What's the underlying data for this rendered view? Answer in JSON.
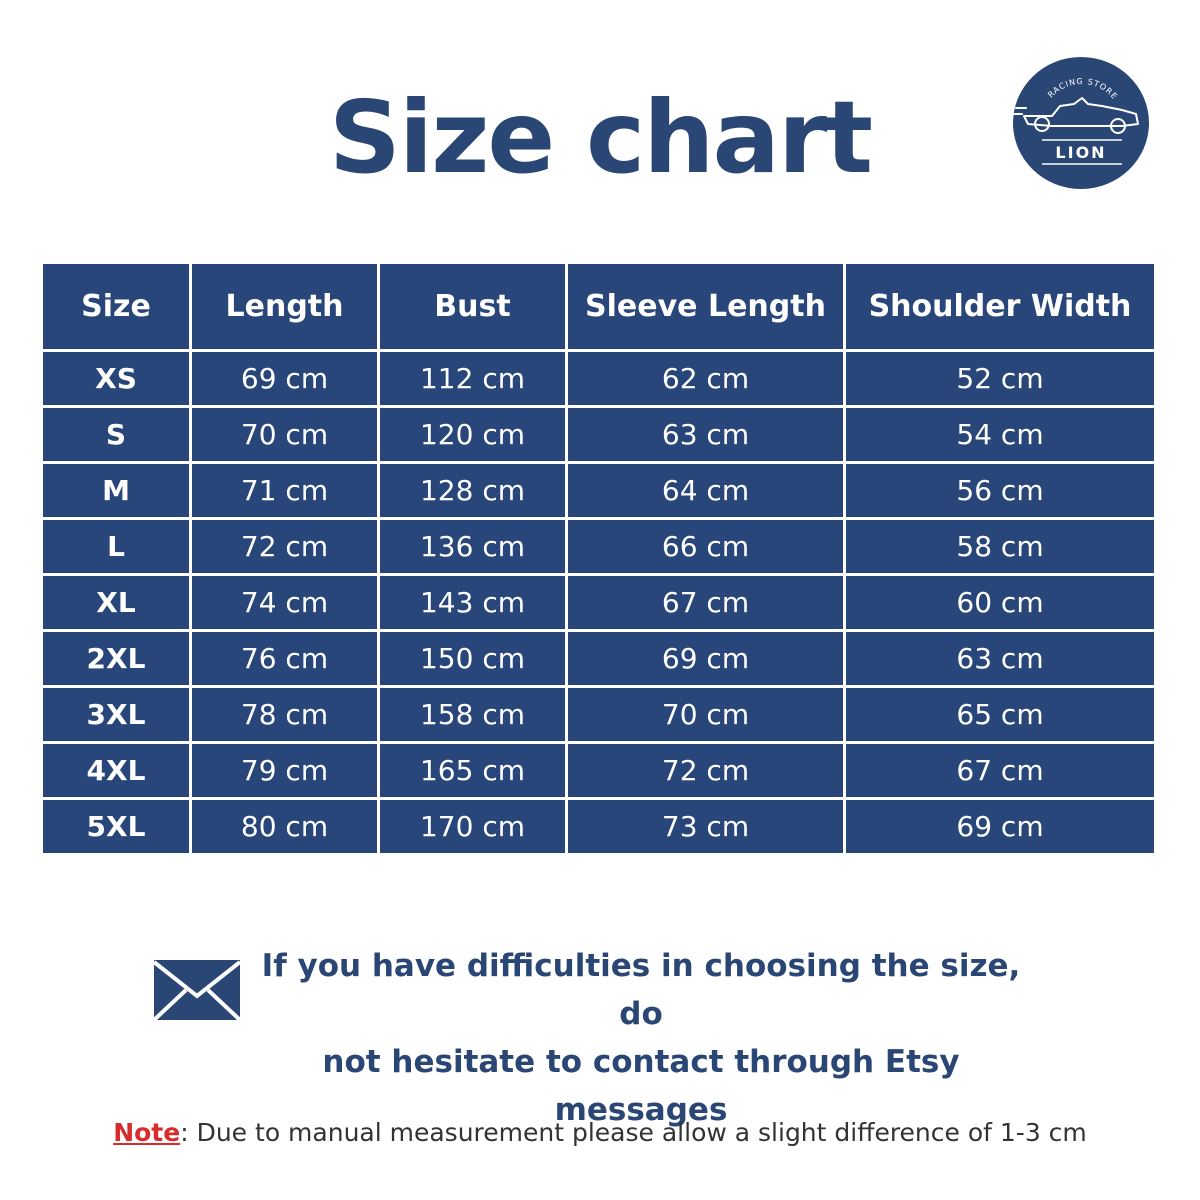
{
  "title": "Size chart",
  "logo": {
    "top_text": "RACING STORE",
    "name": "LION",
    "icon": "race-car-icon"
  },
  "table": {
    "headers": [
      "Size",
      "Length",
      "Bust",
      "Sleeve Length",
      "Shoulder Width"
    ],
    "rows": [
      [
        "XS",
        "69 cm",
        "112 cm",
        "62 cm",
        "52 cm"
      ],
      [
        "S",
        "70 cm",
        "120 cm",
        "63 cm",
        "54 cm"
      ],
      [
        "M",
        "71 cm",
        "128 cm",
        "64 cm",
        "56 cm"
      ],
      [
        "L",
        "72 cm",
        "136 cm",
        "66 cm",
        "58 cm"
      ],
      [
        "XL",
        "74 cm",
        "143 cm",
        "67 cm",
        "60 cm"
      ],
      [
        "2XL",
        "76 cm",
        "150 cm",
        "69 cm",
        "63 cm"
      ],
      [
        "3XL",
        "78 cm",
        "158 cm",
        "70 cm",
        "65 cm"
      ],
      [
        "4XL",
        "79 cm",
        "165 cm",
        "72 cm",
        "67 cm"
      ],
      [
        "5XL",
        "80 cm",
        "170 cm",
        "73 cm",
        "69 cm"
      ]
    ]
  },
  "contact": {
    "icon": "envelope-icon",
    "line1": "If you have difficulties in choosing the size, do",
    "line2": "not hesitate to contact through Etsy messages"
  },
  "note": {
    "label": "Note",
    "text": ": Due to manual measurement please allow a slight difference of 1-3 cm"
  },
  "colors": {
    "primary": "#28467a",
    "title": "#2a4674",
    "note_label": "#d92b2b"
  }
}
